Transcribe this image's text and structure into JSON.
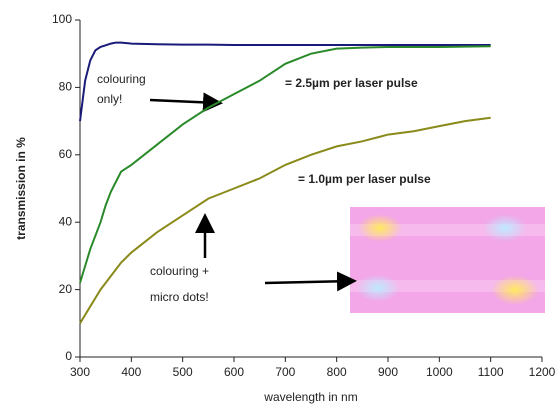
{
  "chart_data": {
    "type": "line",
    "xlabel": "wavelength in nm",
    "ylabel": "transmission in %",
    "x": [
      300,
      310,
      320,
      330,
      340,
      350,
      360,
      370,
      380,
      400,
      450,
      500,
      550,
      600,
      650,
      700,
      750,
      800,
      850,
      900,
      950,
      1000,
      1050,
      1100
    ],
    "series": [
      {
        "color": "#1a1a7a",
        "values": [
          70,
          82,
          88,
          91,
          92,
          92.5,
          93,
          93.3,
          93.3,
          93,
          92.8,
          92.7,
          92.7,
          92.6,
          92.6,
          92.6,
          92.6,
          92.6,
          92.6,
          92.6,
          92.6,
          92.6,
          92.6,
          92.6
        ]
      },
      {
        "color": "#2a8a2a",
        "values": [
          22,
          27,
          32,
          36,
          40,
          45,
          49,
          52,
          55,
          57,
          63,
          69,
          74,
          78,
          82,
          87,
          90,
          91.5,
          91.8,
          92,
          92,
          92,
          92.1,
          92.2
        ]
      },
      {
        "color": "#8a8a1a",
        "values": [
          10,
          12.5,
          15,
          17.5,
          20,
          22,
          24,
          26,
          28,
          31,
          37,
          42,
          47,
          50,
          53,
          57,
          60,
          62.5,
          64,
          66,
          67,
          68.5,
          70,
          71
        ]
      }
    ],
    "xlim": [
      300,
      1200
    ],
    "xticks": [
      300,
      400,
      500,
      600,
      700,
      800,
      900,
      1000,
      1100,
      1200
    ],
    "ylim": [
      0,
      100
    ],
    "yticks": [
      0,
      20,
      40,
      60,
      80,
      100
    ],
    "grid": false,
    "annotations": [
      {
        "lines": [
          "colouring",
          "only!"
        ]
      },
      {
        "lines": [
          "= 2.5µm per laser pulse"
        ]
      },
      {
        "lines": [
          "= 1.0µm per laser pulse"
        ]
      },
      {
        "lines": [
          "colouring +",
          "micro dots!"
        ]
      }
    ]
  }
}
